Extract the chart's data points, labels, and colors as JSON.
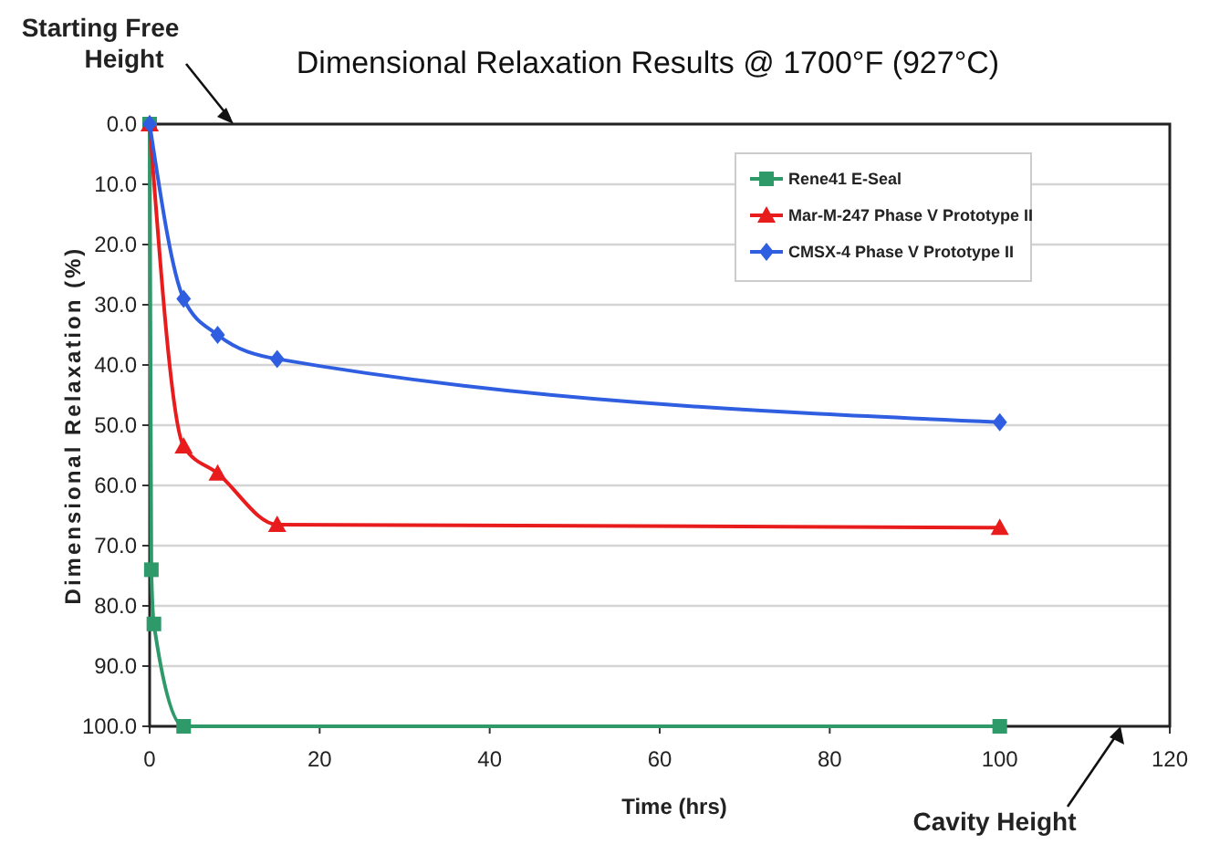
{
  "chart_data": {
    "type": "line",
    "title": "Dimensional Relaxation Results @ 1700°F (927°C)",
    "xlabel": "Time (hrs)",
    "ylabel": "Dimensional Relaxation (%)",
    "xlim": [
      0,
      120
    ],
    "xticks": [
      0,
      20,
      40,
      60,
      80,
      100,
      120
    ],
    "ylim": [
      100,
      0
    ],
    "yticks": [
      {
        "value": 0,
        "label": "0.0"
      },
      {
        "value": 10,
        "label": "10.0"
      },
      {
        "value": 20,
        "label": "20.0"
      },
      {
        "value": 30,
        "label": "30.0"
      },
      {
        "value": 40,
        "label": "40.0"
      },
      {
        "value": 50,
        "label": "50.0"
      },
      {
        "value": 60,
        "label": "60.0"
      },
      {
        "value": 70,
        "label": "70.0"
      },
      {
        "value": 80,
        "label": "80.0"
      },
      {
        "value": 90,
        "label": "90.0"
      },
      {
        "value": 100,
        "label": "100.0"
      }
    ],
    "grid": "y",
    "legend": "top right",
    "series": [
      {
        "name": "Rene41 E-Seal",
        "color": "#2e9a6a",
        "marker": "square",
        "x": [
          0,
          0.2,
          0.5,
          4,
          100
        ],
        "values": [
          0,
          74,
          83,
          100,
          100
        ]
      },
      {
        "name": "Mar-M-247 Phase V Prototype II",
        "color": "#e81c1c",
        "marker": "triangle",
        "x": [
          0,
          4,
          8,
          15,
          100
        ],
        "values": [
          0,
          53.5,
          58,
          66.5,
          67
        ]
      },
      {
        "name": "CMSX-4 Phase V  Prototype II",
        "color": "#2f5fe0",
        "marker": "diamond",
        "x": [
          0,
          4,
          8,
          15,
          100
        ],
        "values": [
          0,
          29,
          35,
          39,
          49.5
        ]
      }
    ],
    "annotations": [
      "Starting Free Height",
      "Cavity Height"
    ]
  }
}
